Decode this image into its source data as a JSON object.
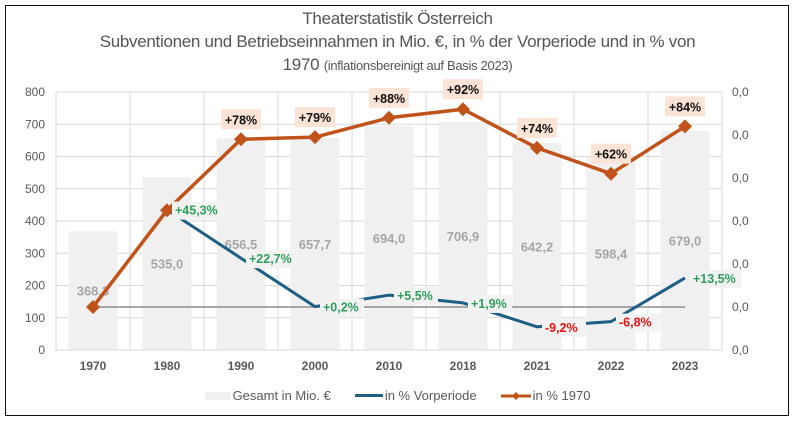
{
  "title": {
    "line1": "Theaterstatistik Österreich",
    "line2": "Subventionen und Betriebseinnahmen in Mio. €,  in % der Vorperiode und in % von",
    "line3_main": "1970",
    "line3_note": "(inflationsbereinigt auf Basis 2023)"
  },
  "colors": {
    "bar": "#f0f0f0",
    "vorperiode": "#1f5f85",
    "pct1970": "#c0531a",
    "reference_line": "#a6a6a6",
    "gridline": "#d9d9d9",
    "positive": "#2e9e5b",
    "negative": "#ee1111",
    "orange_label_bg": "#fbe3d6",
    "pct_label_bg": "#f2f2f2"
  },
  "legend": {
    "bar": "Gesamt in Mio. €",
    "vorperiode": "in % Vorperiode",
    "pct1970": "in % 1970"
  },
  "chart_data": {
    "type": "bar",
    "title": "Theaterstatistik Österreich – Subventionen und Betriebseinnahmen in Mio. €, in % der Vorperiode und in % von 1970 (inflationsbereinigt auf Basis 2023)",
    "categories": [
      "1970",
      "1980",
      "1990",
      "2000",
      "2010",
      "2018",
      "2021",
      "2022",
      "2023"
    ],
    "primary_axis": {
      "ylim": [
        0,
        800
      ],
      "ticks": [
        0,
        100,
        200,
        300,
        400,
        500,
        600,
        700,
        800
      ]
    },
    "secondary_axis": {
      "ylim": [
        -20,
        100
      ],
      "ticks": [
        -20,
        0,
        20,
        40,
        60,
        80,
        100
      ],
      "tick_labels": [
        "0,0",
        "0,0",
        "0,0",
        "0,0",
        "0,0",
        "0,0",
        "0,0"
      ]
    },
    "grid": true,
    "legend_position": "bottom",
    "series": [
      {
        "name": "Gesamt in Mio. €",
        "type": "bar",
        "axis": "primary",
        "values": [
          368.3,
          535.0,
          656.5,
          657.7,
          694.0,
          706.9,
          642.2,
          598.4,
          679.0
        ],
        "labels": [
          "368,3",
          "535,0",
          "656,5",
          "657,7",
          "694,0",
          "706,9",
          "642,2",
          "598,4",
          "679,0"
        ]
      },
      {
        "name": "in % Vorperiode",
        "type": "line",
        "axis": "secondary",
        "values": [
          null,
          45.3,
          22.7,
          0.2,
          5.5,
          1.9,
          -9.2,
          -6.8,
          13.5
        ],
        "labels": [
          null,
          "+45,3%",
          "+22,7%",
          "+0,2%",
          "+5,5%",
          "+1,9%",
          "-9,2%",
          "-6,8%",
          "+13,5%"
        ]
      },
      {
        "name": "in % 1970",
        "type": "line",
        "axis": "secondary",
        "marker": "diamond",
        "values": [
          0,
          45,
          78,
          79,
          88,
          92,
          74,
          62,
          84
        ],
        "labels": [
          null,
          null,
          "+78%",
          "+79%",
          "+88%",
          "+92%",
          "+74%",
          "+62%",
          "+84%"
        ]
      },
      {
        "name": "reference 0%",
        "type": "line",
        "axis": "secondary",
        "values": [
          0,
          0,
          0,
          0,
          0,
          0,
          0,
          0,
          0
        ]
      }
    ]
  }
}
